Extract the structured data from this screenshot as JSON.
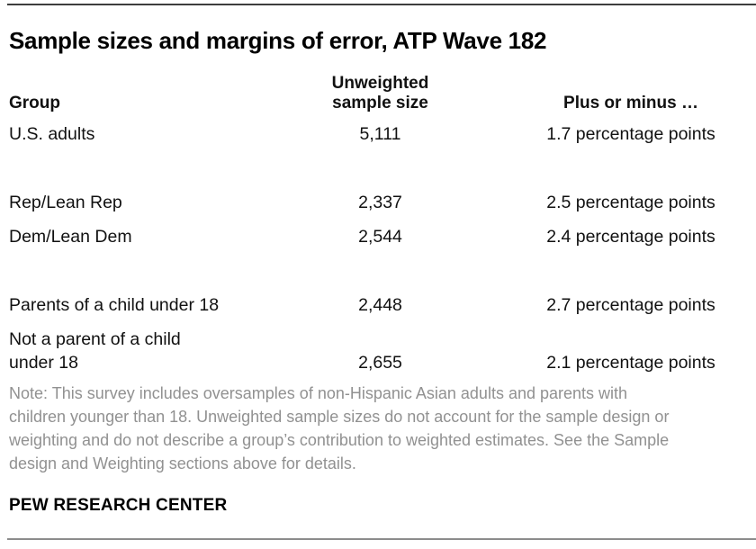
{
  "chart_data": {
    "type": "table",
    "title": "Sample sizes and margins of error, ATP Wave 182",
    "columns": [
      "Group",
      "Unweighted sample size",
      "Plus or minus …"
    ],
    "header_display": {
      "group": "Group",
      "size": "Unweighted\nsample size",
      "moe": "Plus or minus …"
    },
    "rows": [
      {
        "group": "U.S. adults",
        "size": "5,111",
        "size_value": 5111,
        "moe": "1.7 percentage points",
        "moe_value": 1.7
      },
      {
        "group": "Rep/Lean Rep",
        "size": "2,337",
        "size_value": 2337,
        "moe": "2.5 percentage points",
        "moe_value": 2.5
      },
      {
        "group": "Dem/Lean Dem",
        "size": "2,544",
        "size_value": 2544,
        "moe": "2.4 percentage points",
        "moe_value": 2.4
      },
      {
        "group": "Parents of a child under 18",
        "size": "2,448",
        "size_value": 2448,
        "moe": "2.7 percentage points",
        "moe_value": 2.7
      },
      {
        "group": "Not a parent of a child under 18",
        "group_display": "Not a parent of a child\nunder 18",
        "size": "2,655",
        "size_value": 2655,
        "moe": "2.1 percentage points",
        "moe_value": 2.1
      }
    ],
    "note": "Note: This survey includes oversamples of non-Hispanic Asian adults and parents with children younger than 18. Unweighted sample sizes do not account for the sample design or weighting and do not describe a group’s contribution to weighted estimates. See the Sample design and Weighting sections above for details.",
    "source": "PEW RESEARCH CENTER",
    "layout": {
      "grid": false,
      "legend": "none"
    }
  },
  "note_lines": [
    "Note: This survey includes oversamples of non-Hispanic Asian adults and parents with",
    "children younger than 18. Unweighted sample sizes do not account for the sample design or",
    "weighting and do not describe a group’s contribution to weighted estimates. See the Sample",
    "design and Weighting sections above for details."
  ],
  "colors": {
    "background": "#ffffff",
    "rule_top": "#3d3d3d",
    "rule_bottom": "#8c8c8c",
    "title_text": "#000000",
    "body_text": "#111111",
    "note_text": "#919191"
  }
}
